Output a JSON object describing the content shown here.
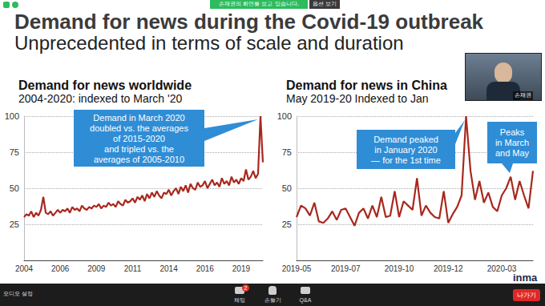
{
  "slide": {
    "title": "Demand for news during the Covid-19 outbreak",
    "subtitle": "Unprecedented in terms of scale and duration",
    "logo": "inma"
  },
  "zoom": {
    "banner": "손재권의 화면을 보고 있습니다.",
    "options": "옵션 보기",
    "presenter": "손재권",
    "audio": "오디오 설정",
    "chat": "채팅",
    "chat_badge": 2,
    "raise_hand": "손들기",
    "qa": "Q&A",
    "leave": "나가기"
  },
  "chart_data": [
    {
      "type": "line",
      "title": "Demand for news worldwide",
      "subtitle": "2004-2020: indexed to March '20",
      "categories": [
        "2004",
        null,
        null,
        null,
        null,
        null,
        null,
        null,
        null,
        null,
        null,
        null,
        null,
        null,
        null,
        "2006",
        null,
        null,
        null,
        null,
        null,
        null,
        null,
        null,
        null,
        null,
        null,
        null,
        null,
        null,
        "2009",
        null,
        null,
        null,
        null,
        null,
        null,
        null,
        null,
        null,
        null,
        null,
        null,
        null,
        null,
        "2011",
        null,
        null,
        null,
        null,
        null,
        null,
        null,
        null,
        null,
        null,
        null,
        null,
        null,
        null,
        "2014",
        null,
        null,
        null,
        null,
        null,
        null,
        null,
        null,
        null,
        null,
        null,
        null,
        null,
        null,
        "2016",
        null,
        null,
        null,
        null,
        null,
        null,
        null,
        null,
        null,
        null,
        null,
        null,
        null,
        null,
        "2019",
        null,
        null,
        null,
        null,
        null,
        null,
        null,
        null,
        null
      ],
      "values": [
        30,
        32,
        31,
        34,
        30,
        33,
        31,
        35,
        44,
        33,
        32,
        34,
        31,
        33,
        35,
        33,
        35,
        34,
        36,
        33,
        37,
        35,
        36,
        34,
        38,
        36,
        35,
        37,
        36,
        38,
        37,
        39,
        36,
        38,
        37,
        40,
        38,
        39,
        37,
        41,
        39,
        38,
        42,
        40,
        41,
        43,
        40,
        44,
        42,
        45,
        41,
        46,
        43,
        47,
        44,
        48,
        45,
        43,
        47,
        46,
        49,
        45,
        48,
        50,
        46,
        51,
        48,
        52,
        47,
        53,
        50,
        49,
        54,
        51,
        52,
        55,
        50,
        53,
        56,
        52,
        54,
        51,
        57,
        53,
        55,
        52,
        58,
        54,
        56,
        53,
        57,
        55,
        63,
        56,
        58,
        62,
        57,
        60,
        100,
        68
      ],
      "color": "#a8281e",
      "ylim": [
        0,
        100
      ],
      "yticks": [
        25,
        50,
        75,
        100
      ],
      "grid": true,
      "annotations": [
        [
          "Demand in March 2020",
          "doubled vs. the averages",
          "of 2015-2020",
          "and tripled vs. the",
          "averages of 2005-2010"
        ]
      ]
    },
    {
      "type": "line",
      "title": "Demand for news in China",
      "subtitle": "May 2019-20 Indexed to Jan",
      "categories": [
        "2019-05",
        null,
        null,
        null,
        null,
        null,
        null,
        null,
        null,
        null,
        null,
        "2019-07",
        null,
        null,
        null,
        null,
        null,
        null,
        null,
        null,
        null,
        null,
        null,
        "2019-10",
        null,
        null,
        null,
        null,
        null,
        null,
        null,
        null,
        null,
        null,
        "2019-12",
        null,
        null,
        null,
        null,
        null,
        null,
        null,
        null,
        null,
        null,
        null,
        "2020-03",
        null,
        null,
        null,
        null,
        null,
        null,
        null
      ],
      "values": [
        30,
        38,
        36,
        31,
        40,
        27,
        26,
        29,
        34,
        28,
        35,
        36,
        30,
        24,
        33,
        36,
        29,
        38,
        30,
        44,
        30,
        31,
        48,
        30,
        41,
        38,
        35,
        57,
        31,
        38,
        33,
        30,
        29,
        48,
        26,
        32,
        37,
        45,
        100,
        62,
        42,
        55,
        40,
        47,
        37,
        34,
        45,
        50,
        58,
        42,
        55,
        45,
        36,
        62
      ],
      "color": "#a8281e",
      "ylim": [
        0,
        100
      ],
      "yticks": [
        25,
        50,
        75,
        100
      ],
      "grid": true,
      "annotations": [
        [
          "Demand peaked",
          "in January 2020",
          "— for the 1st time"
        ],
        [
          "Peaks",
          "in March",
          "and May"
        ]
      ]
    }
  ]
}
